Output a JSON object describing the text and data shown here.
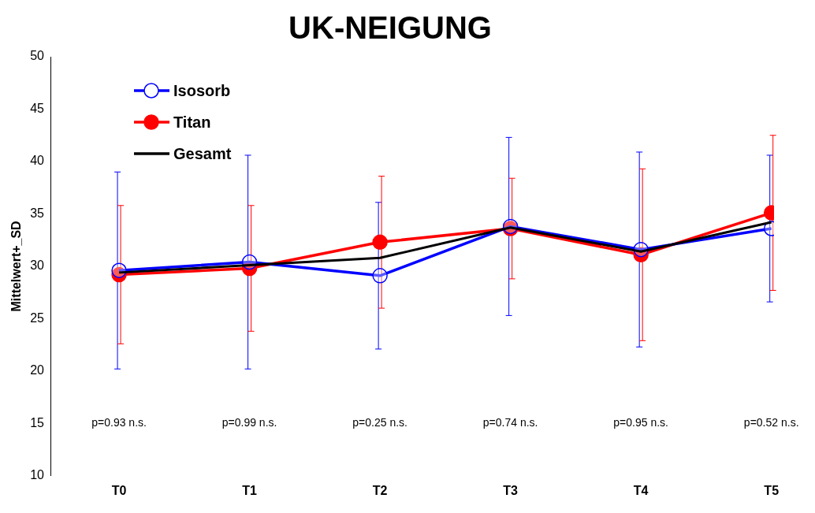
{
  "chart_data": {
    "type": "line",
    "title": "UK-NEIGUNG",
    "ylabel": "Mittelwert+_SD",
    "categories": [
      "T0",
      "T1",
      "T2",
      "T3",
      "T4",
      "T5"
    ],
    "series": [
      {
        "name": "Isosorb",
        "color": "#0000ff",
        "marker": "circle",
        "values": [
          29.6,
          30.4,
          29.1,
          33.8,
          31.6,
          33.6
        ],
        "errors": [
          9.4,
          10.2,
          7.0,
          8.5,
          9.3,
          7.0
        ]
      },
      {
        "name": "Titan",
        "color": "#ff0000",
        "marker": "circle",
        "values": [
          29.2,
          29.8,
          32.3,
          33.6,
          31.1,
          35.1
        ],
        "errors": [
          6.6,
          6.0,
          6.3,
          4.8,
          8.2,
          7.4
        ]
      },
      {
        "name": "Gesamt",
        "color": "#000000",
        "marker": "none",
        "values": [
          29.4,
          30.1,
          30.8,
          33.7,
          31.4,
          34.2
        ]
      }
    ],
    "ylim": [
      10,
      50
    ],
    "yticks": [
      10,
      15,
      20,
      25,
      30,
      35,
      40,
      45,
      50
    ],
    "grid": false,
    "legend": "top left",
    "annotations": [
      "p=0.93 n.s.",
      "p=0.99 n.s.",
      "p=0.25 n.s.",
      "p=0.74 n.s.",
      "p=0.95 n.s.",
      "p=0.52 n.s."
    ]
  }
}
